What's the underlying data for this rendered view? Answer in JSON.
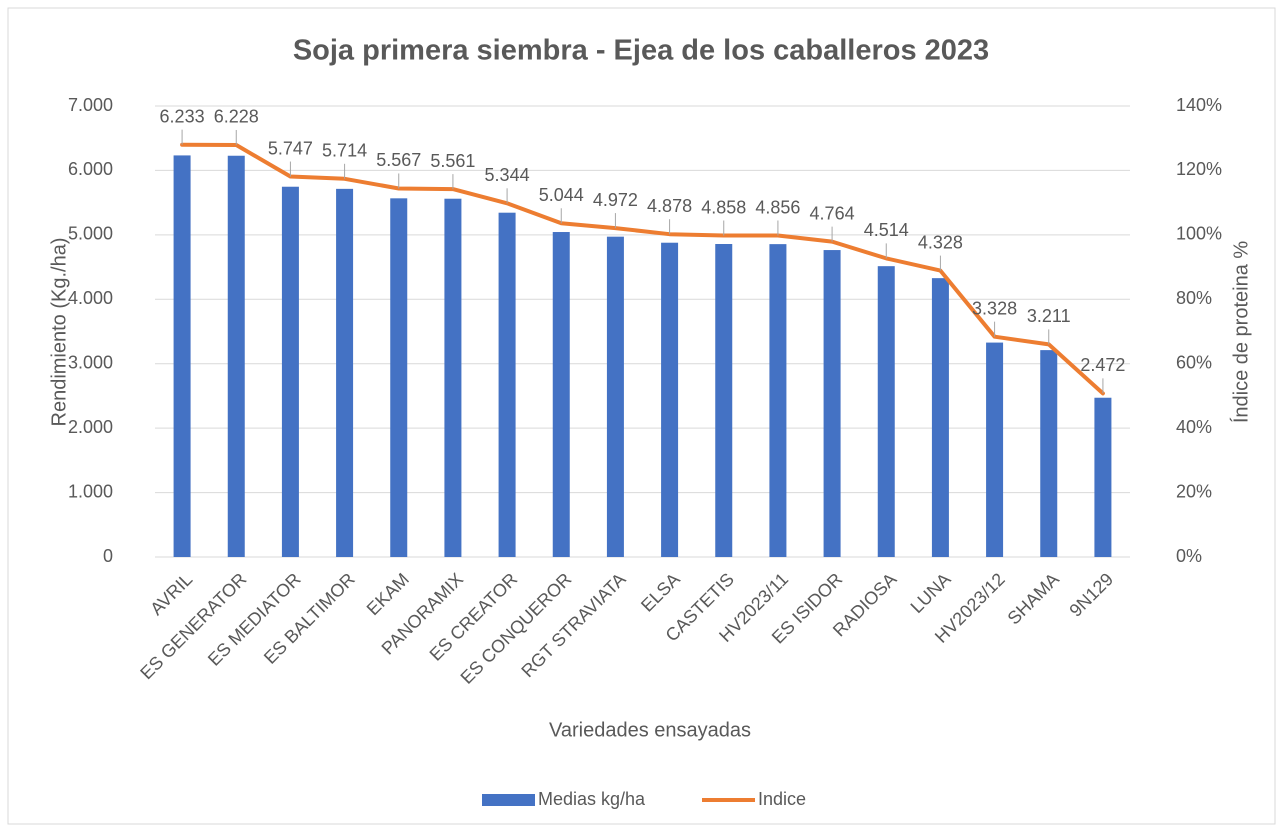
{
  "chart_data": {
    "type": "bar",
    "title": "Soja primera siembra - Ejea de los caballeros 2023",
    "x_label": "Variedades ensayadas",
    "y_label": "Rendimiento (Kg./ha)",
    "y2_label": "Índice de proteina %",
    "categories": [
      "AVRIL",
      "ES GENERATOR",
      "ES MEDIATOR",
      "ES BALTIMOR",
      "EKAM",
      "PANORAMIX",
      "ES CREATOR",
      "ES CONQUEROR",
      "RGT STRAVIATA",
      "ELSA",
      "CASTETIS",
      "HV2023/11",
      "ES ISIDOR",
      "RADIOSA",
      "LUNA",
      "HV2023/12",
      "SHAMA",
      "9N129"
    ],
    "series": [
      {
        "name": "Medias kg/ha",
        "type": "bar",
        "color": "#4472c4",
        "values": [
          6233,
          6228,
          5747,
          5714,
          5567,
          5561,
          5344,
          5044,
          4972,
          4878,
          4858,
          4856,
          4764,
          4514,
          4328,
          3328,
          3211,
          2472
        ],
        "value_labels": [
          "6.233",
          "6.228",
          "5.747",
          "5.714",
          "5.567",
          "5.561",
          "5.344",
          "5.044",
          "4.972",
          "4.878",
          "4.858",
          "4.856",
          "4.764",
          "4.514",
          "4.328",
          "3.328",
          "3.211",
          "2.472"
        ]
      },
      {
        "name": "Indice",
        "type": "line",
        "color": "#ed7d31",
        "axis": "y2",
        "values": [
          128.0,
          127.9,
          118.1,
          117.4,
          114.4,
          114.2,
          109.8,
          103.6,
          102.1,
          100.2,
          99.8,
          99.8,
          97.9,
          92.7,
          88.9,
          68.4,
          66.0,
          50.8
        ]
      }
    ],
    "ylim": [
      0,
      7000
    ],
    "yticks": [
      0,
      {
        "value": 1000,
        "label": "1.000"
      },
      {
        "value": 2000,
        "label": "2.000"
      },
      {
        "value": 3000,
        "label": "3.000"
      },
      {
        "value": 4000,
        "label": "4.000"
      },
      {
        "value": 5000,
        "label": "5.000"
      },
      {
        "value": 6000,
        "label": "6.000"
      },
      {
        "value": 7000,
        "label": "7.000"
      }
    ],
    "y2lim": [
      0,
      140
    ],
    "y2ticks": [
      {
        "value": 0,
        "label": "0%"
      },
      {
        "value": 20,
        "label": "20%"
      },
      {
        "value": 40,
        "label": "40%"
      },
      {
        "value": 60,
        "label": "60%"
      },
      {
        "value": 80,
        "label": "80%"
      },
      {
        "value": 100,
        "label": "100%"
      },
      {
        "value": 120,
        "label": "120%"
      },
      {
        "value": 140,
        "label": "140%"
      }
    ],
    "grid": true,
    "legend": "bottom"
  }
}
